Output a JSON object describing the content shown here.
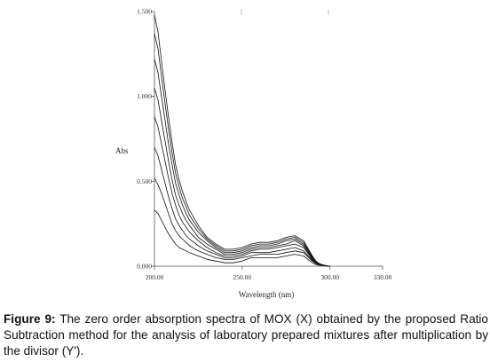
{
  "caption": {
    "label": "Figure 9:",
    "text": " The zero order absorption spectra of MOX (X) obtained by the proposed Ratio Subtraction method for the analysis of laboratory prepared mixtures after multiplication by the divisor (Y')."
  },
  "chart_data": {
    "type": "line",
    "title": "",
    "xlabel": "Wavelength (nm)",
    "ylabel": "Abs",
    "xlim": [
      200,
      330
    ],
    "ylim": [
      0,
      1.5
    ],
    "x_ticks": [
      200,
      250,
      300,
      330
    ],
    "x_tick_labels": [
      "200.00",
      "250.00",
      "300.00",
      "330.00"
    ],
    "y_ticks": [
      0,
      0.5,
      1.0,
      1.5
    ],
    "y_tick_labels": [
      "0.000",
      "0.500",
      "1.000",
      "1.500"
    ],
    "grid": false,
    "legend": "none",
    "line_color": "#111111",
    "x": [
      200,
      202,
      204,
      206,
      208,
      210,
      212,
      214,
      216,
      218,
      220,
      225,
      230,
      235,
      240,
      245,
      250,
      255,
      260,
      265,
      270,
      275,
      280,
      285,
      290,
      292,
      294,
      296,
      298,
      300
    ],
    "series": [
      {
        "values": [
          0.33,
          0.31,
          0.27,
          0.23,
          0.19,
          0.16,
          0.13,
          0.11,
          0.1,
          0.09,
          0.08,
          0.06,
          0.04,
          0.03,
          0.02,
          0.02,
          0.03,
          0.05,
          0.05,
          0.05,
          0.05,
          0.06,
          0.07,
          0.06,
          0.02,
          0.01,
          0.005,
          0.003,
          0.001,
          0.0
        ]
      },
      {
        "values": [
          0.52,
          0.48,
          0.43,
          0.37,
          0.31,
          0.25,
          0.21,
          0.18,
          0.16,
          0.14,
          0.12,
          0.09,
          0.07,
          0.05,
          0.04,
          0.04,
          0.05,
          0.06,
          0.07,
          0.07,
          0.07,
          0.08,
          0.09,
          0.08,
          0.03,
          0.015,
          0.008,
          0.004,
          0.001,
          0.0
        ]
      },
      {
        "values": [
          0.7,
          0.65,
          0.57,
          0.49,
          0.41,
          0.34,
          0.28,
          0.24,
          0.21,
          0.18,
          0.16,
          0.12,
          0.09,
          0.07,
          0.05,
          0.05,
          0.06,
          0.08,
          0.08,
          0.08,
          0.09,
          0.1,
          0.11,
          0.09,
          0.035,
          0.018,
          0.01,
          0.005,
          0.002,
          0.0
        ]
      },
      {
        "values": [
          0.88,
          0.82,
          0.72,
          0.62,
          0.52,
          0.43,
          0.36,
          0.3,
          0.26,
          0.23,
          0.2,
          0.15,
          0.11,
          0.08,
          0.06,
          0.06,
          0.07,
          0.09,
          0.1,
          0.1,
          0.11,
          0.12,
          0.13,
          0.11,
          0.04,
          0.02,
          0.011,
          0.006,
          0.002,
          0.0
        ]
      },
      {
        "values": [
          1.05,
          0.98,
          0.86,
          0.74,
          0.62,
          0.51,
          0.42,
          0.36,
          0.31,
          0.27,
          0.24,
          0.17,
          0.13,
          0.1,
          0.07,
          0.07,
          0.08,
          0.1,
          0.11,
          0.11,
          0.12,
          0.13,
          0.15,
          0.12,
          0.045,
          0.022,
          0.012,
          0.006,
          0.002,
          0.0
        ]
      },
      {
        "values": [
          1.22,
          1.14,
          1.0,
          0.86,
          0.72,
          0.6,
          0.49,
          0.42,
          0.36,
          0.31,
          0.27,
          0.2,
          0.15,
          0.11,
          0.08,
          0.08,
          0.09,
          0.11,
          0.12,
          0.12,
          0.13,
          0.15,
          0.16,
          0.13,
          0.05,
          0.025,
          0.013,
          0.007,
          0.002,
          0.0
        ]
      },
      {
        "values": [
          1.37,
          1.28,
          1.12,
          0.96,
          0.81,
          0.67,
          0.55,
          0.47,
          0.4,
          0.35,
          0.3,
          0.22,
          0.16,
          0.12,
          0.09,
          0.09,
          0.1,
          0.12,
          0.13,
          0.13,
          0.14,
          0.16,
          0.17,
          0.14,
          0.055,
          0.027,
          0.014,
          0.007,
          0.002,
          0.0
        ]
      },
      {
        "values": [
          1.48,
          1.38,
          1.21,
          1.04,
          0.88,
          0.73,
          0.6,
          0.51,
          0.44,
          0.38,
          0.33,
          0.24,
          0.17,
          0.13,
          0.1,
          0.1,
          0.11,
          0.13,
          0.14,
          0.14,
          0.15,
          0.17,
          0.18,
          0.15,
          0.06,
          0.03,
          0.015,
          0.008,
          0.003,
          0.0
        ]
      }
    ]
  }
}
